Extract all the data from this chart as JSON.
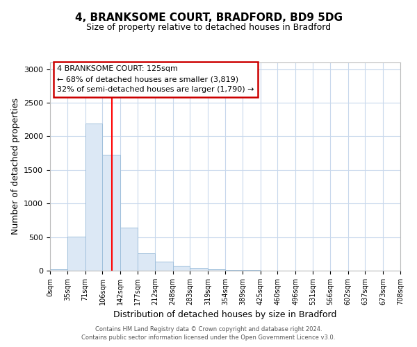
{
  "title": "4, BRANKSOME COURT, BRADFORD, BD9 5DG",
  "subtitle": "Size of property relative to detached houses in Bradford",
  "xlabel": "Distribution of detached houses by size in Bradford",
  "ylabel": "Number of detached properties",
  "bar_color": "#dce8f5",
  "bar_edge_color": "#a0c0dc",
  "bar_edge_width": 0.7,
  "grid_color": "#c8d8ec",
  "background_color": "#ffffff",
  "red_line_x": 125,
  "annotation_text": "4 BRANKSOME COURT: 125sqm\n← 68% of detached houses are smaller (3,819)\n32% of semi-detached houses are larger (1,790) →",
  "annotation_box_color": "#ffffff",
  "annotation_box_edge": "#cc0000",
  "footnote1": "Contains HM Land Registry data © Crown copyright and database right 2024.",
  "footnote2": "Contains public sector information licensed under the Open Government Licence v3.0.",
  "bin_edges": [
    0,
    35,
    71,
    106,
    142,
    177,
    212,
    248,
    283,
    319,
    354,
    389,
    425,
    460,
    496,
    531,
    566,
    602,
    637,
    673,
    708
  ],
  "bar_heights": [
    20,
    510,
    2190,
    1730,
    640,
    260,
    130,
    70,
    40,
    25,
    15,
    10,
    5,
    2,
    2,
    2,
    1,
    1,
    1,
    1
  ],
  "ylim": [
    0,
    3100
  ],
  "xlim": [
    0,
    708
  ],
  "yticks": [
    0,
    500,
    1000,
    1500,
    2000,
    2500,
    3000
  ],
  "xtick_labels": [
    "0sqm",
    "35sqm",
    "71sqm",
    "106sqm",
    "142sqm",
    "177sqm",
    "212sqm",
    "248sqm",
    "283sqm",
    "319sqm",
    "354sqm",
    "389sqm",
    "425sqm",
    "460sqm",
    "496sqm",
    "531sqm",
    "566sqm",
    "602sqm",
    "637sqm",
    "673sqm",
    "708sqm"
  ]
}
